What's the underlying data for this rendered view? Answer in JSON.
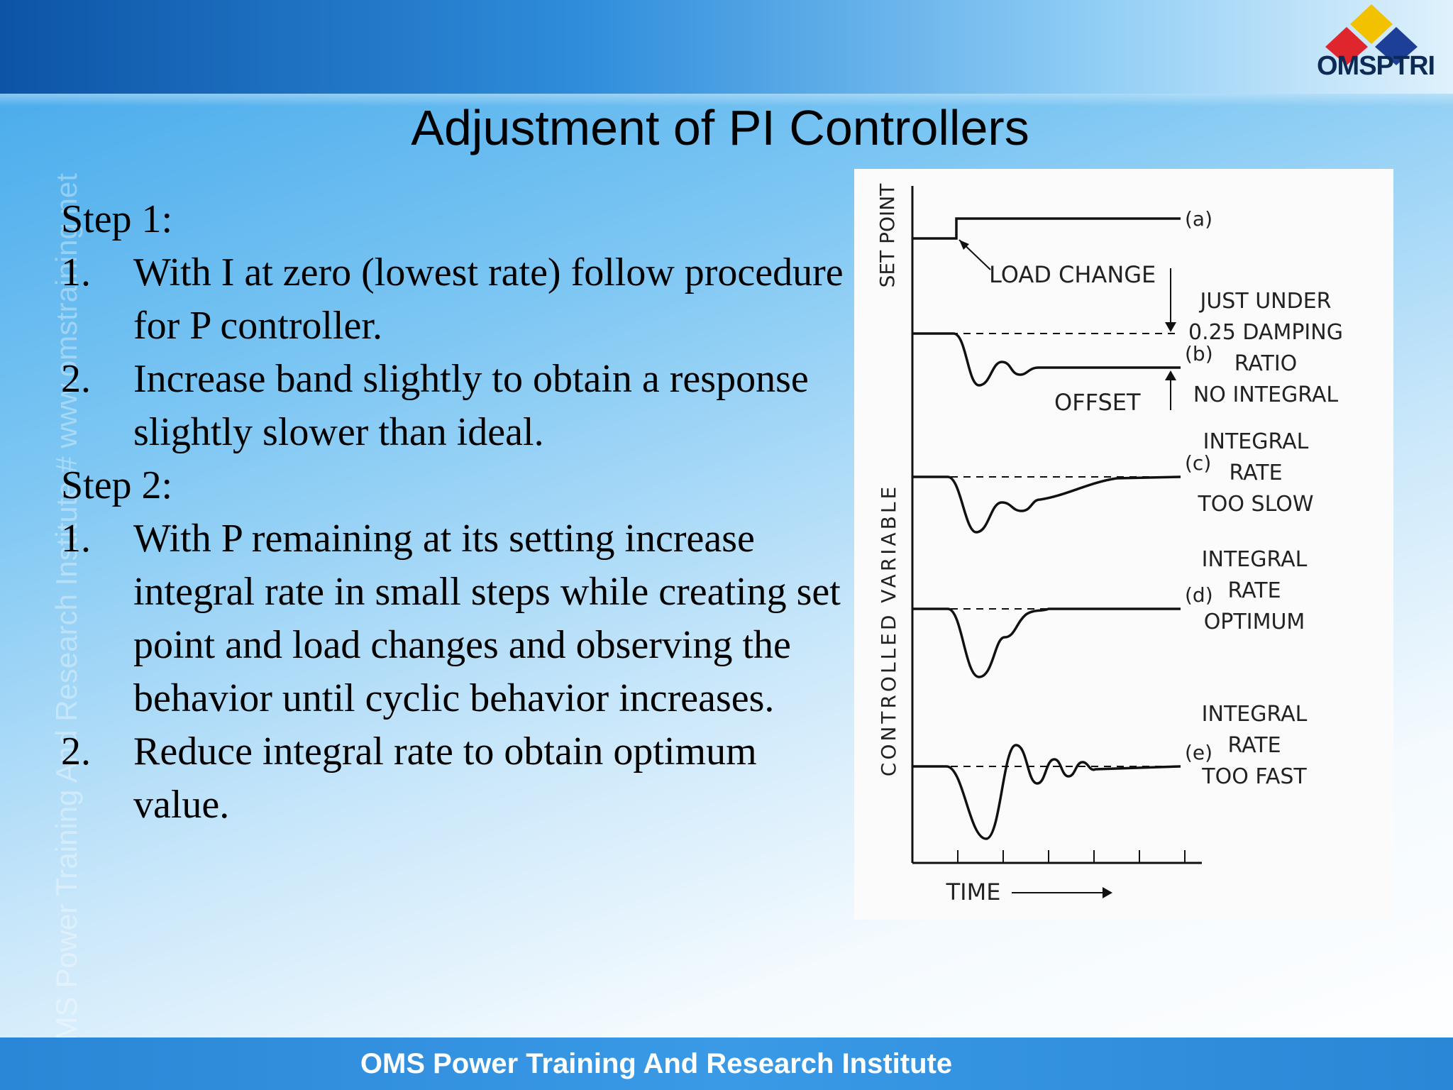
{
  "logo": {
    "text": "OMSPTRI"
  },
  "watermark": "OMS Power Training And Research Institute # www.omstraining.net",
  "title": "Adjustment of PI Controllers",
  "steps": [
    {
      "label": "Step 1:",
      "items": [
        {
          "num": "1.",
          "text": "With I at zero (lowest rate) follow procedure for P controller."
        },
        {
          "num": "2.",
          "text": "Increase band slightly to obtain a response slightly slower than ideal."
        }
      ]
    },
    {
      "label": "Step 2:",
      "items": [
        {
          "num": "1.",
          "text": "With P remaining at its setting increase integral rate in small steps while creating set point and load changes and observing the behavior until cyclic behavior increases."
        },
        {
          "num": "2.",
          "text": "Reduce integral rate to obtain optimum value."
        }
      ]
    }
  ],
  "figure": {
    "y_axis_top": "SET POINT",
    "y_axis_main": "CONTROLLED VARIABLE",
    "x_axis": "TIME",
    "load_change": "LOAD CHANGE",
    "offset": "OFFSET",
    "curves": [
      {
        "id": "(a)",
        "lines": []
      },
      {
        "id": "(b)",
        "lines": [
          "JUST UNDER",
          "0.25 DAMPING",
          "RATIO",
          "NO INTEGRAL"
        ]
      },
      {
        "id": "(c)",
        "lines": [
          "INTEGRAL",
          "RATE",
          "TOO SLOW"
        ]
      },
      {
        "id": "(d)",
        "lines": [
          "INTEGRAL",
          "RATE",
          "OPTIMUM"
        ]
      },
      {
        "id": "(e)",
        "lines": [
          "INTEGRAL",
          "RATE",
          "TOO FAST"
        ]
      }
    ]
  },
  "footer": "OMS Power Training And Research Institute"
}
